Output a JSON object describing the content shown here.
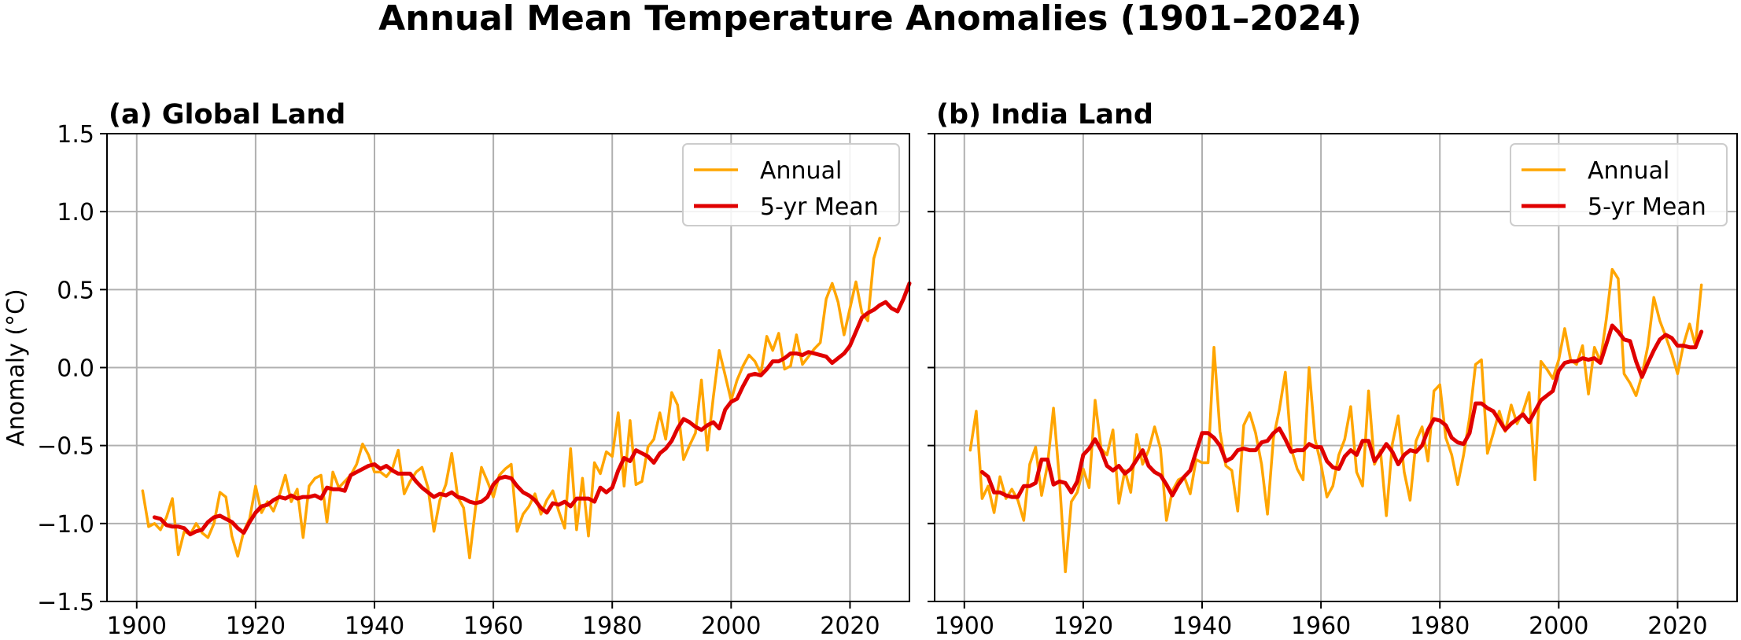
{
  "figure": {
    "title": "Annual Mean Temperature Anomalies (1901–2024)"
  },
  "colors": {
    "annual": "#FFA500",
    "mean": "#E00000",
    "grid": "#b0b0b0",
    "axes": "#000000"
  },
  "chart_data": [
    {
      "type": "line",
      "title": "(a) Global Land",
      "xlabel": "",
      "ylabel": "Anomaly (°C)",
      "xlim": [
        1895,
        2030
      ],
      "ylim": [
        -1.5,
        1.5
      ],
      "xticks": [
        1900,
        1920,
        1940,
        1960,
        1980,
        2000,
        2020
      ],
      "xtick_labels": [
        "1900",
        "1920",
        "1940",
        "1960",
        "1980",
        "2000",
        "2020"
      ],
      "yticks": [
        -1.5,
        -1.0,
        -0.5,
        0.0,
        0.5,
        1.0,
        1.5
      ],
      "ytick_labels": [
        "−1.5",
        "−1.0",
        "−0.5",
        "0.0",
        "0.5",
        "1.0",
        "1.5"
      ],
      "grid": true,
      "legend_position": "top-right",
      "series": [
        {
          "name": "Annual",
          "x_start": 1901,
          "values": [
            -0.79,
            -1.02,
            -1.0,
            -1.04,
            -0.96,
            -0.84,
            -1.2,
            -1.05,
            -1.07,
            -1.0,
            -1.06,
            -1.09,
            -1.0,
            -0.8,
            -0.83,
            -1.08,
            -1.21,
            -1.05,
            -0.97,
            -0.76,
            -0.93,
            -0.86,
            -0.92,
            -0.82,
            -0.69,
            -0.86,
            -0.78,
            -1.09,
            -0.76,
            -0.71,
            -0.69,
            -0.99,
            -0.67,
            -0.77,
            -0.73,
            -0.69,
            -0.62,
            -0.49,
            -0.56,
            -0.67,
            -0.67,
            -0.7,
            -0.65,
            -0.53,
            -0.81,
            -0.73,
            -0.67,
            -0.64,
            -0.77,
            -1.05,
            -0.85,
            -0.75,
            -0.55,
            -0.83,
            -0.9,
            -1.22,
            -0.9,
            -0.64,
            -0.73,
            -0.83,
            -0.69,
            -0.65,
            -0.62,
            -1.05,
            -0.94,
            -0.89,
            -0.81,
            -0.94,
            -0.85,
            -0.79,
            -0.92,
            -1.03,
            -0.52,
            -1.04,
            -0.71,
            -1.08,
            -0.61,
            -0.68,
            -0.54,
            -0.57,
            -0.29,
            -0.76,
            -0.34,
            -0.75,
            -0.73,
            -0.51,
            -0.46,
            -0.29,
            -0.46,
            -0.16,
            -0.24,
            -0.59,
            -0.5,
            -0.42,
            -0.08,
            -0.53,
            -0.19,
            0.11,
            -0.05,
            -0.21,
            -0.08,
            0.01,
            0.08,
            0.04,
            -0.04,
            0.2,
            0.11,
            0.22,
            -0.01,
            0.01,
            0.21,
            0.02,
            0.07,
            0.12,
            0.16,
            0.44,
            0.54,
            0.42,
            0.21,
            0.38,
            0.55,
            0.35,
            0.3,
            0.7,
            0.83
          ]
        },
        {
          "name": "5-yr Mean",
          "x_start": 1903,
          "values": [
            -0.96,
            -0.97,
            -1.01,
            -1.02,
            -1.02,
            -1.03,
            -1.07,
            -1.05,
            -1.04,
            -0.99,
            -0.96,
            -0.95,
            -0.97,
            -0.99,
            -1.03,
            -1.06,
            -0.99,
            -0.93,
            -0.89,
            -0.88,
            -0.85,
            -0.83,
            -0.84,
            -0.82,
            -0.84,
            -0.83,
            -0.83,
            -0.82,
            -0.84,
            -0.77,
            -0.78,
            -0.78,
            -0.79,
            -0.69,
            -0.67,
            -0.65,
            -0.63,
            -0.62,
            -0.65,
            -0.63,
            -0.66,
            -0.68,
            -0.68,
            -0.68,
            -0.73,
            -0.77,
            -0.8,
            -0.83,
            -0.81,
            -0.82,
            -0.8,
            -0.83,
            -0.84,
            -0.86,
            -0.87,
            -0.86,
            -0.83,
            -0.75,
            -0.71,
            -0.7,
            -0.71,
            -0.76,
            -0.8,
            -0.82,
            -0.85,
            -0.9,
            -0.93,
            -0.87,
            -0.88,
            -0.86,
            -0.89,
            -0.84,
            -0.84,
            -0.84,
            -0.86,
            -0.77,
            -0.8,
            -0.77,
            -0.66,
            -0.58,
            -0.6,
            -0.53,
            -0.55,
            -0.57,
            -0.61,
            -0.55,
            -0.52,
            -0.47,
            -0.39,
            -0.33,
            -0.35,
            -0.38,
            -0.4,
            -0.37,
            -0.35,
            -0.39,
            -0.27,
            -0.22,
            -0.2,
            -0.12,
            -0.05,
            -0.04,
            -0.05,
            -0.01,
            0.04,
            0.04,
            0.06,
            0.09,
            0.09,
            0.08,
            0.1,
            0.09,
            0.08,
            0.07,
            0.03,
            0.06,
            0.09,
            0.14,
            0.23,
            0.32,
            0.35,
            0.37,
            0.4,
            0.42,
            0.38,
            0.36,
            0.44,
            0.54
          ]
        }
      ]
    },
    {
      "type": "line",
      "title": "(b) India Land",
      "xlabel": "",
      "ylabel": "",
      "xlim": [
        1895,
        2030
      ],
      "ylim": [
        -1.5,
        1.5
      ],
      "xticks": [
        1900,
        1920,
        1940,
        1960,
        1980,
        2000,
        2020
      ],
      "xtick_labels": [
        "1900",
        "1920",
        "1940",
        "1960",
        "1980",
        "2000",
        "2020"
      ],
      "yticks": [
        -1.5,
        -1.0,
        -0.5,
        0.0,
        0.5,
        1.0,
        1.5
      ],
      "grid": true,
      "legend_position": "top-right",
      "series": [
        {
          "name": "Annual",
          "x_start": 1901,
          "values": [
            -0.53,
            -0.28,
            -0.84,
            -0.76,
            -0.93,
            -0.7,
            -0.84,
            -0.78,
            -0.85,
            -0.98,
            -0.62,
            -0.51,
            -0.82,
            -0.62,
            -0.26,
            -0.72,
            -1.31,
            -0.86,
            -0.8,
            -0.65,
            -0.77,
            -0.21,
            -0.52,
            -0.56,
            -0.4,
            -0.87,
            -0.66,
            -0.8,
            -0.43,
            -0.62,
            -0.53,
            -0.38,
            -0.52,
            -0.98,
            -0.79,
            -0.72,
            -0.7,
            -0.81,
            -0.59,
            -0.61,
            -0.61,
            0.13,
            -0.41,
            -0.63,
            -0.66,
            -0.92,
            -0.37,
            -0.29,
            -0.42,
            -0.62,
            -0.94,
            -0.45,
            -0.27,
            -0.03,
            -0.52,
            -0.65,
            -0.72,
            0.0,
            -0.46,
            -0.62,
            -0.83,
            -0.76,
            -0.56,
            -0.46,
            -0.25,
            -0.67,
            -0.76,
            -0.15,
            -0.62,
            -0.53,
            -0.95,
            -0.49,
            -0.31,
            -0.67,
            -0.85,
            -0.47,
            -0.38,
            -0.6,
            -0.15,
            -0.11,
            -0.45,
            -0.56,
            -0.75,
            -0.56,
            -0.32,
            0.02,
            0.05,
            -0.55,
            -0.42,
            -0.28,
            -0.41,
            -0.24,
            -0.36,
            -0.28,
            -0.16,
            -0.72,
            0.04,
            -0.01,
            -0.07,
            0.05,
            0.25,
            0.05,
            0.02,
            0.14,
            -0.17,
            0.13,
            0.04,
            0.31,
            0.63,
            0.57,
            -0.04,
            -0.1,
            -0.18,
            -0.05,
            0.14,
            0.45,
            0.3,
            0.2,
            0.09,
            -0.04,
            0.15,
            0.28,
            0.14,
            0.53
          ]
        },
        {
          "name": "5-yr Mean",
          "x_start": 1903,
          "values": [
            -0.67,
            -0.7,
            -0.8,
            -0.8,
            -0.82,
            -0.83,
            -0.83,
            -0.76,
            -0.76,
            -0.74,
            -0.59,
            -0.59,
            -0.75,
            -0.73,
            -0.74,
            -0.8,
            -0.73,
            -0.56,
            -0.52,
            -0.46,
            -0.53,
            -0.63,
            -0.66,
            -0.63,
            -0.68,
            -0.65,
            -0.59,
            -0.53,
            -0.63,
            -0.67,
            -0.69,
            -0.75,
            -0.82,
            -0.75,
            -0.7,
            -0.66,
            -0.54,
            -0.42,
            -0.42,
            -0.45,
            -0.5,
            -0.6,
            -0.58,
            -0.53,
            -0.52,
            -0.53,
            -0.53,
            -0.48,
            -0.47,
            -0.42,
            -0.39,
            -0.46,
            -0.54,
            -0.53,
            -0.53,
            -0.49,
            -0.51,
            -0.51,
            -0.6,
            -0.64,
            -0.65,
            -0.57,
            -0.53,
            -0.56,
            -0.47,
            -0.47,
            -0.6,
            -0.55,
            -0.49,
            -0.54,
            -0.62,
            -0.56,
            -0.53,
            -0.54,
            -0.5,
            -0.4,
            -0.33,
            -0.34,
            -0.37,
            -0.45,
            -0.48,
            -0.49,
            -0.42,
            -0.23,
            -0.23,
            -0.26,
            -0.28,
            -0.34,
            -0.4,
            -0.36,
            -0.33,
            -0.3,
            -0.35,
            -0.28,
            -0.21,
            -0.18,
            -0.15,
            -0.02,
            0.03,
            0.04,
            0.04,
            0.06,
            0.05,
            0.06,
            0.03,
            0.15,
            0.27,
            0.23,
            0.18,
            0.17,
            0.04,
            -0.06,
            0.03,
            0.11,
            0.18,
            0.21,
            0.19,
            0.14,
            0.14,
            0.13,
            0.13,
            0.23
          ]
        }
      ]
    }
  ]
}
